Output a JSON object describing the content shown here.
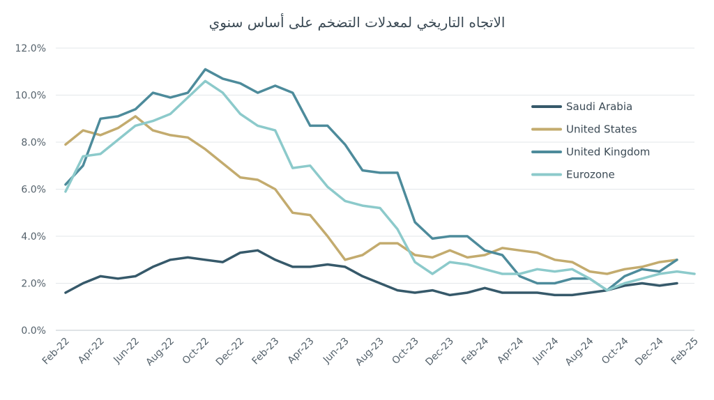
{
  "chart_data": {
    "type": "line",
    "title": "الاتجاه التاريخي لمعدلات التضخم على أساس سنوي",
    "xlabel": "",
    "ylabel": "",
    "ylim": [
      0,
      12
    ],
    "y_ticks": [
      "0.0%",
      "2.0%",
      "4.0%",
      "6.0%",
      "8.0%",
      "10.0%",
      "12.0%"
    ],
    "y_tick_values": [
      0,
      2,
      4,
      6,
      8,
      10,
      12
    ],
    "grid": true,
    "legend_position": "right",
    "x": [
      "Feb-22",
      "Mar-22",
      "Apr-22",
      "May-22",
      "Jun-22",
      "Jul-22",
      "Aug-22",
      "Sep-22",
      "Oct-22",
      "Nov-22",
      "Dec-22",
      "Jan-23",
      "Feb-23",
      "Mar-23",
      "Apr-23",
      "May-23",
      "Jun-23",
      "Jul-23",
      "Aug-23",
      "Sep-23",
      "Oct-23",
      "Nov-23",
      "Dec-23",
      "Jan-24",
      "Feb-24",
      "Mar-24",
      "Apr-24",
      "May-24",
      "Jun-24",
      "Jul-24",
      "Aug-24",
      "Sep-24",
      "Oct-24",
      "Nov-24",
      "Dec-24",
      "Jan-25",
      "Feb-25"
    ],
    "x_tick_labels": [
      "Feb-22",
      "Apr-22",
      "Jun-22",
      "Aug-22",
      "Oct-22",
      "Dec-22",
      "Feb-23",
      "Apr-23",
      "Jun-23",
      "Aug-23",
      "Oct-23",
      "Dec-23",
      "Feb-24",
      "Apr-24",
      "Jun-24",
      "Aug-24",
      "Oct-24",
      "Dec-24",
      "Feb-25"
    ],
    "series": [
      {
        "name": "Saudi Arabia",
        "color": "#36596a",
        "values": [
          1.6,
          2.0,
          2.3,
          2.2,
          2.3,
          2.7,
          3.0,
          3.1,
          3.0,
          2.9,
          3.3,
          3.4,
          3.0,
          2.7,
          2.7,
          2.8,
          2.7,
          2.3,
          2.0,
          1.7,
          1.6,
          1.7,
          1.5,
          1.6,
          1.8,
          1.6,
          1.6,
          1.6,
          1.5,
          1.5,
          1.6,
          1.7,
          1.9,
          2.0,
          1.9,
          2.0,
          null
        ]
      },
      {
        "name": "United States",
        "color": "#c3ab6e",
        "values": [
          7.9,
          8.5,
          8.3,
          8.6,
          9.1,
          8.5,
          8.3,
          8.2,
          7.7,
          7.1,
          6.5,
          6.4,
          6.0,
          5.0,
          4.9,
          4.0,
          3.0,
          3.2,
          3.7,
          3.7,
          3.2,
          3.1,
          3.4,
          3.1,
          3.2,
          3.5,
          3.4,
          3.3,
          3.0,
          2.9,
          2.5,
          2.4,
          2.6,
          2.7,
          2.9,
          3.0,
          null
        ]
      },
      {
        "name": "United Kingdom",
        "color": "#4d8b9b",
        "values": [
          6.2,
          7.0,
          9.0,
          9.1,
          9.4,
          10.1,
          9.9,
          10.1,
          11.1,
          10.7,
          10.5,
          10.1,
          10.4,
          10.1,
          8.7,
          8.7,
          7.9,
          6.8,
          6.7,
          6.7,
          4.6,
          3.9,
          4.0,
          4.0,
          3.4,
          3.2,
          2.3,
          2.0,
          2.0,
          2.2,
          2.2,
          1.7,
          2.3,
          2.6,
          2.5,
          3.0,
          null
        ]
      },
      {
        "name": "Eurozone",
        "color": "#8ccacb",
        "values": [
          5.9,
          7.4,
          7.5,
          8.1,
          8.7,
          8.9,
          9.2,
          9.9,
          10.6,
          10.1,
          9.2,
          8.7,
          8.5,
          6.9,
          7.0,
          6.1,
          5.5,
          5.3,
          5.2,
          4.3,
          2.9,
          2.4,
          2.9,
          2.8,
          2.6,
          2.4,
          2.4,
          2.6,
          2.5,
          2.6,
          2.2,
          1.7,
          2.0,
          2.2,
          2.4,
          2.5,
          2.4
        ]
      }
    ]
  }
}
